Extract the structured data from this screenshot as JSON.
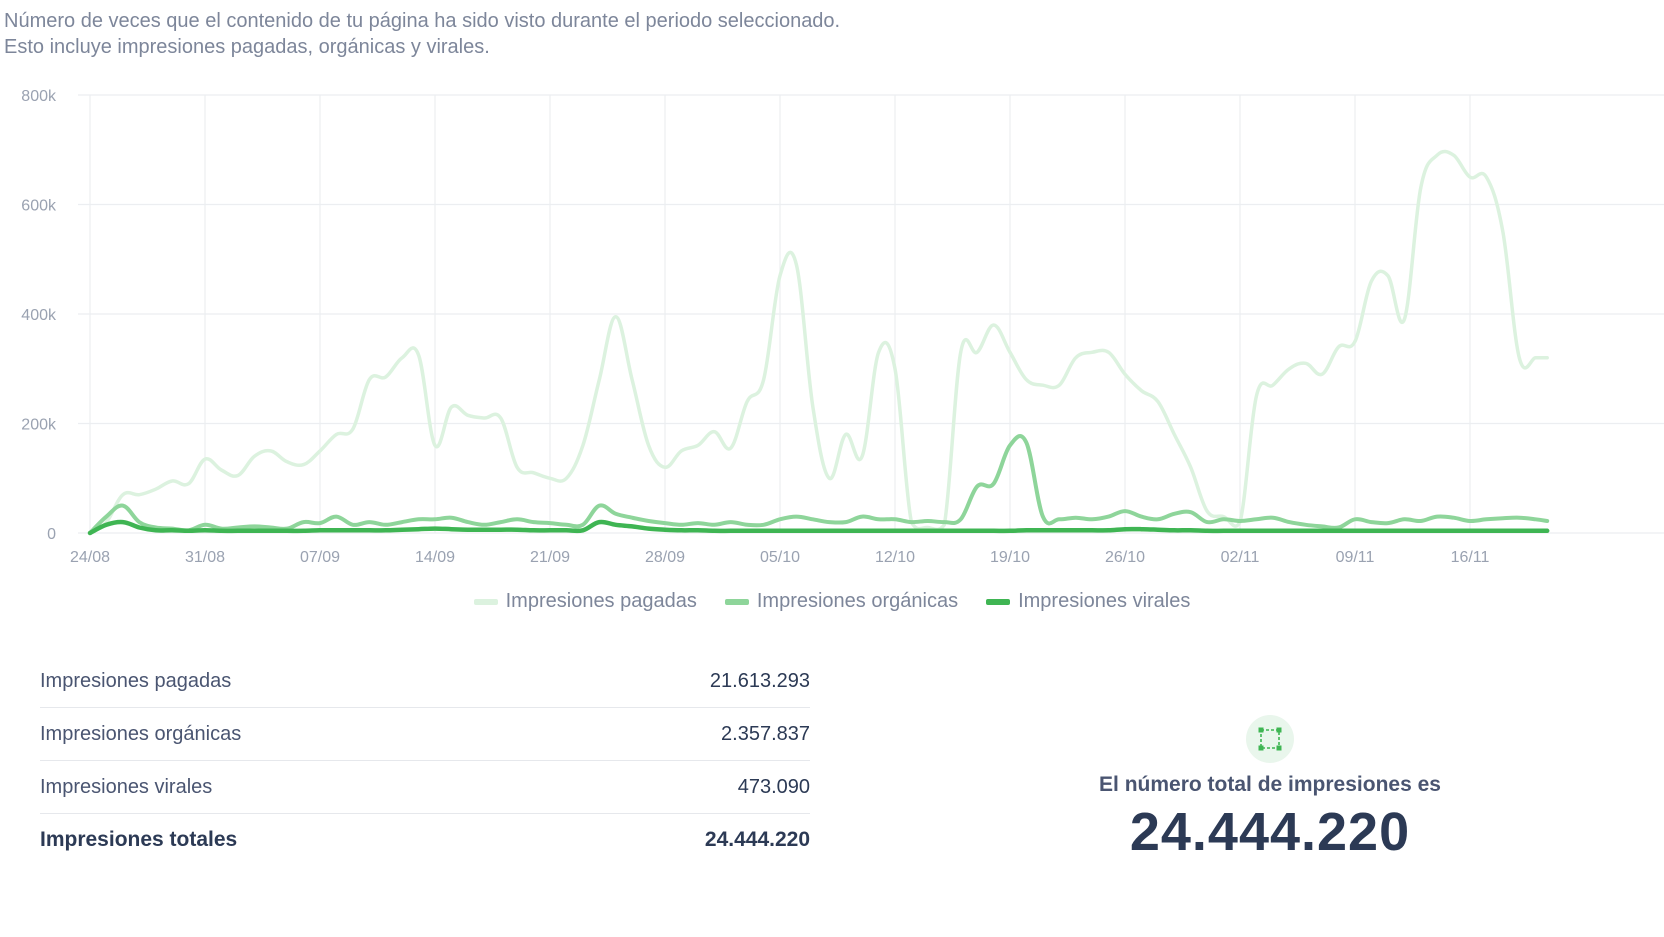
{
  "description": {
    "line1": "Número de veces que el contenido de tu página ha sido visto durante el periodo seleccionado.",
    "line2": "Esto incluye impresiones pagadas, orgánicas y virales."
  },
  "chart_data": {
    "type": "line",
    "title": "",
    "xlabel": "",
    "ylabel": "",
    "ylim": [
      0,
      800000
    ],
    "y_ticks": [
      0,
      200000,
      400000,
      600000,
      800000
    ],
    "y_tick_labels": [
      "0",
      "200k",
      "400k",
      "600k",
      "800k"
    ],
    "x_tick_labels": [
      "24/08",
      "31/08",
      "07/09",
      "14/09",
      "21/09",
      "28/09",
      "05/10",
      "12/10",
      "19/10",
      "26/10",
      "02/11",
      "09/11",
      "16/11"
    ],
    "x_tick_days": [
      0,
      7,
      14,
      21,
      28,
      35,
      42,
      49,
      56,
      63,
      70,
      77,
      84
    ],
    "x_domain": [
      0,
      88.7
    ],
    "grid": true,
    "legend_position": "bottom-center",
    "series": [
      {
        "name": "Impresiones pagadas",
        "color": "#dcf2df",
        "width": 3.5,
        "x": [
          0,
          1,
          2,
          3,
          4,
          5,
          6,
          7,
          8,
          9,
          10,
          11,
          12,
          13,
          14,
          15,
          16,
          17,
          18,
          19,
          20,
          21,
          22,
          23,
          24,
          25,
          26,
          27,
          28,
          29,
          30,
          31,
          32,
          33,
          34,
          35,
          36,
          37,
          38,
          39,
          40,
          41,
          42,
          43,
          44,
          45,
          46,
          47,
          48,
          49,
          50,
          51,
          52,
          53,
          54,
          55,
          56,
          57,
          58,
          59,
          60,
          61,
          62,
          63,
          64,
          65,
          66,
          67,
          68,
          69,
          70,
          71,
          72,
          73,
          74,
          75,
          76,
          77,
          78,
          79,
          80,
          81,
          82,
          83,
          84,
          85,
          86,
          87,
          88,
          88.7
        ],
        "values": [
          0,
          20000,
          70000,
          70000,
          80000,
          95000,
          90000,
          135000,
          115000,
          105000,
          140000,
          150000,
          130000,
          125000,
          150000,
          180000,
          190000,
          280000,
          285000,
          320000,
          325000,
          160000,
          230000,
          215000,
          210000,
          210000,
          120000,
          110000,
          100000,
          100000,
          160000,
          280000,
          395000,
          280000,
          160000,
          120000,
          150000,
          160000,
          185000,
          155000,
          240000,
          280000,
          470000,
          490000,
          230000,
          100000,
          180000,
          140000,
          330000,
          300000,
          20000,
          10000,
          15000,
          330000,
          330000,
          380000,
          330000,
          280000,
          270000,
          270000,
          320000,
          330000,
          330000,
          290000,
          260000,
          240000,
          180000,
          120000,
          40000,
          30000,
          20000,
          250000,
          270000,
          300000,
          310000,
          290000,
          340000,
          350000,
          460000,
          470000,
          390000,
          630000,
          690000,
          690000,
          650000,
          650000,
          550000,
          320000,
          320000,
          320000
        ]
      },
      {
        "name": "Impresiones orgánicas",
        "color": "#8ed59a",
        "width": 4,
        "x": [
          0,
          1,
          2,
          3,
          4,
          5,
          6,
          7,
          8,
          9,
          10,
          11,
          12,
          13,
          14,
          15,
          16,
          17,
          18,
          19,
          20,
          21,
          22,
          23,
          24,
          25,
          26,
          27,
          28,
          29,
          30,
          31,
          32,
          33,
          34,
          35,
          36,
          37,
          38,
          39,
          40,
          41,
          42,
          43,
          44,
          45,
          46,
          47,
          48,
          49,
          50,
          51,
          52,
          53,
          54,
          55,
          56,
          57,
          58,
          59,
          60,
          61,
          62,
          63,
          64,
          65,
          66,
          67,
          68,
          69,
          70,
          71,
          72,
          73,
          74,
          75,
          76,
          77,
          78,
          79,
          80,
          81,
          82,
          83,
          84,
          85,
          86,
          87,
          88,
          88.7
        ],
        "values": [
          0,
          30000,
          50000,
          20000,
          10000,
          8000,
          5000,
          15000,
          8000,
          10000,
          12000,
          10000,
          8000,
          20000,
          18000,
          30000,
          15000,
          20000,
          15000,
          20000,
          25000,
          25000,
          28000,
          20000,
          15000,
          20000,
          25000,
          20000,
          18000,
          15000,
          15000,
          50000,
          35000,
          28000,
          22000,
          18000,
          15000,
          18000,
          15000,
          20000,
          15000,
          15000,
          25000,
          30000,
          25000,
          20000,
          20000,
          30000,
          25000,
          25000,
          20000,
          22000,
          20000,
          25000,
          85000,
          90000,
          160000,
          165000,
          30000,
          25000,
          28000,
          25000,
          30000,
          40000,
          30000,
          25000,
          35000,
          38000,
          20000,
          25000,
          22000,
          25000,
          28000,
          20000,
          15000,
          12000,
          10000,
          25000,
          20000,
          18000,
          25000,
          22000,
          30000,
          28000,
          22000,
          25000,
          27000,
          28000,
          25000,
          22000
        ]
      },
      {
        "name": "Impresiones virales",
        "color": "#3fb553",
        "width": 4.5,
        "x": [
          0,
          1,
          2,
          3,
          4,
          5,
          6,
          7,
          8,
          9,
          10,
          11,
          12,
          13,
          14,
          15,
          16,
          17,
          18,
          19,
          20,
          21,
          22,
          23,
          24,
          25,
          26,
          27,
          28,
          29,
          30,
          31,
          32,
          33,
          34,
          35,
          36,
          37,
          38,
          39,
          40,
          41,
          42,
          43,
          44,
          45,
          46,
          47,
          48,
          49,
          50,
          51,
          52,
          53,
          54,
          55,
          56,
          57,
          58,
          59,
          60,
          61,
          62,
          63,
          64,
          65,
          66,
          67,
          68,
          69,
          70,
          71,
          72,
          73,
          74,
          75,
          76,
          77,
          78,
          79,
          80,
          81,
          82,
          83,
          84,
          85,
          86,
          87,
          88,
          88.7
        ],
        "values": [
          0,
          15000,
          20000,
          10000,
          5000,
          5000,
          4000,
          5000,
          4000,
          4000,
          4000,
          4000,
          4000,
          4000,
          5000,
          5000,
          5000,
          5000,
          5000,
          6000,
          7000,
          8000,
          7000,
          6000,
          6000,
          6000,
          6000,
          5000,
          5000,
          5000,
          5000,
          20000,
          15000,
          12000,
          8000,
          6000,
          5000,
          5000,
          4000,
          4000,
          4000,
          4000,
          4000,
          4000,
          4000,
          4000,
          4000,
          4000,
          4000,
          4000,
          4000,
          4000,
          4000,
          4000,
          4000,
          4000,
          4000,
          5000,
          5000,
          5000,
          5000,
          5000,
          5000,
          7000,
          7000,
          6000,
          5000,
          5000,
          4000,
          4000,
          4000,
          4000,
          4000,
          4000,
          4000,
          4000,
          4000,
          4000,
          4000,
          4000,
          4000,
          4000,
          4000,
          4000,
          4000,
          4000,
          4000,
          4000,
          4000,
          4000
        ]
      }
    ]
  },
  "legend": [
    {
      "label": "Impresiones pagadas",
      "color": "#dcf2df"
    },
    {
      "label": "Impresiones orgánicas",
      "color": "#8ed59a"
    },
    {
      "label": "Impresiones virales",
      "color": "#3fb553"
    }
  ],
  "summary": {
    "rows": [
      {
        "label": "Impresiones pagadas",
        "value": "21.613.293"
      },
      {
        "label": "Impresiones orgánicas",
        "value": "2.357.837"
      },
      {
        "label": "Impresiones virales",
        "value": "473.090"
      }
    ],
    "total": {
      "label": "Impresiones totales",
      "value": "24.444.220"
    }
  },
  "total_card": {
    "icon": "selection-frame-icon",
    "label": "El número total de impresiones es",
    "value": "24.444.220"
  }
}
